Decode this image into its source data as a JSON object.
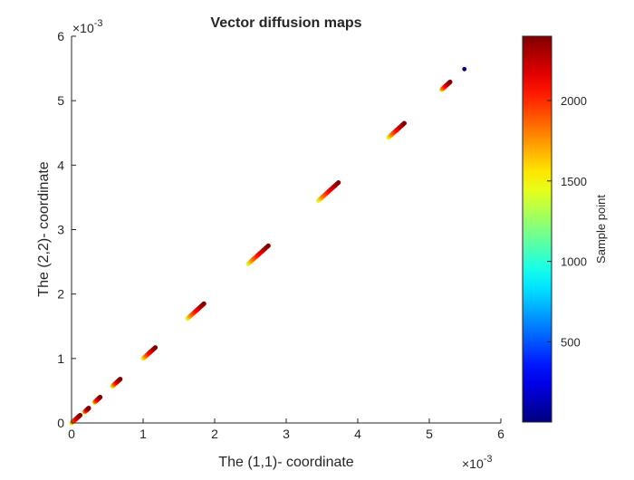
{
  "chart_data": {
    "type": "scatter",
    "title": "Vector diffusion maps",
    "xlabel": "The (1,1)- coordinate",
    "ylabel": "The (2,2)- coordinate",
    "x_exponent": "×10",
    "x_exponent_power": "-3",
    "y_exponent": "×10",
    "y_exponent_power": "-3",
    "xlim": [
      0,
      6
    ],
    "ylim": [
      0,
      6
    ],
    "xticks": [
      "0",
      "1",
      "2",
      "3",
      "4",
      "5",
      "6"
    ],
    "yticks": [
      "0",
      "1",
      "2",
      "3",
      "4",
      "5",
      "6"
    ],
    "grid": false,
    "colormap": "jet",
    "colorbar": {
      "label": "Sample point",
      "range": [
        1,
        2400
      ],
      "ticks": [
        "500",
        "1000",
        "1500",
        "2000"
      ],
      "tick_values": [
        500,
        1000,
        1500,
        2000
      ],
      "placement": "right"
    },
    "segments": [
      {
        "x": [
          0.0,
          0.12
        ],
        "y": [
          0.0,
          0.12
        ],
        "c": [
          1500,
          2400
        ]
      },
      {
        "x": [
          0.18,
          0.24
        ],
        "y": [
          0.17,
          0.23
        ],
        "c": [
          1500,
          2400
        ]
      },
      {
        "x": [
          0.32,
          0.4
        ],
        "y": [
          0.32,
          0.4
        ],
        "c": [
          1500,
          2400
        ]
      },
      {
        "x": [
          0.57,
          0.68
        ],
        "y": [
          0.57,
          0.68
        ],
        "c": [
          1400,
          2400
        ]
      },
      {
        "x": [
          1.0,
          1.17
        ],
        "y": [
          1.0,
          1.17
        ],
        "c": [
          1400,
          2400
        ]
      },
      {
        "x": [
          1.62,
          1.85
        ],
        "y": [
          1.62,
          1.85
        ],
        "c": [
          1400,
          2400
        ]
      },
      {
        "x": [
          2.47,
          2.75
        ],
        "y": [
          2.47,
          2.75
        ],
        "c": [
          1400,
          2400
        ]
      },
      {
        "x": [
          3.45,
          3.73
        ],
        "y": [
          3.45,
          3.73
        ],
        "c": [
          1400,
          2400
        ]
      },
      {
        "x": [
          4.43,
          4.65
        ],
        "y": [
          4.43,
          4.65
        ],
        "c": [
          1400,
          2400
        ]
      },
      {
        "x": [
          5.17,
          5.29
        ],
        "y": [
          5.17,
          5.29
        ],
        "c": [
          1500,
          2400
        ]
      }
    ],
    "points": [
      {
        "x": 5.49,
        "y": 5.49,
        "c": 1
      }
    ]
  }
}
